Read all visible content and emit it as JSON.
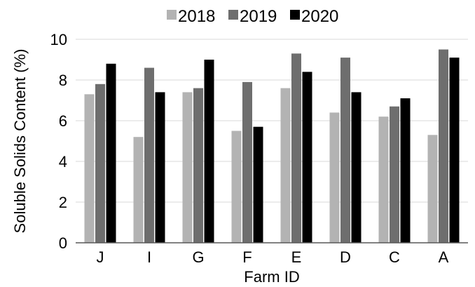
{
  "chart_data": {
    "type": "bar",
    "categories": [
      "J",
      "I",
      "G",
      "F",
      "E",
      "D",
      "C",
      "A"
    ],
    "series": [
      {
        "name": "2018",
        "color": "#b3b3b3",
        "values": [
          7.3,
          5.2,
          7.4,
          5.5,
          7.6,
          6.4,
          6.2,
          5.3
        ]
      },
      {
        "name": "2019",
        "color": "#6e6e6e",
        "values": [
          7.8,
          8.6,
          7.6,
          7.9,
          9.3,
          9.1,
          6.7,
          9.5
        ]
      },
      {
        "name": "2020",
        "color": "#000000",
        "values": [
          8.8,
          7.4,
          9.0,
          5.7,
          8.4,
          7.4,
          7.1,
          9.1
        ]
      }
    ],
    "xlabel": "Farm ID",
    "ylabel": "Soluble Solids Content (%)",
    "ylim": [
      0,
      10
    ],
    "yticks": [
      0,
      2,
      4,
      6,
      8,
      10
    ],
    "grid": true,
    "legend_position": "top"
  }
}
